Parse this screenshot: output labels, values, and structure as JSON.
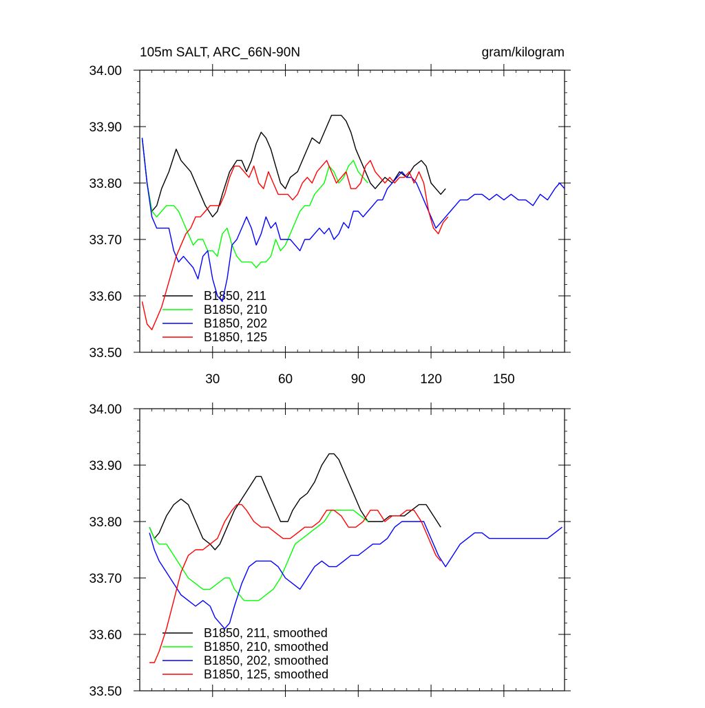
{
  "page": {
    "title_left": "105m SALT, ARC_66N-90N",
    "title_right": "gram/kilogram"
  },
  "chart_data": [
    {
      "type": "line",
      "title": "105m SALT, ARC_66N-90N",
      "units": "gram/kilogram",
      "xlim": [
        0,
        175
      ],
      "ylim": [
        33.5,
        34.0
      ],
      "x_ticks": [
        30,
        60,
        90,
        120,
        150
      ],
      "x_tick_labels": [
        "30",
        "60",
        "90",
        "120",
        "150"
      ],
      "y_ticks": [
        33.5,
        33.6,
        33.7,
        33.8,
        33.9,
        34.0
      ],
      "y_tick_labels": [
        "33.50",
        "33.60",
        "33.70",
        "33.80",
        "33.90",
        "34.00"
      ],
      "legend": "lower-left",
      "series": [
        {
          "name": "B1850, 211",
          "color": "#000000",
          "x": [
            1,
            3,
            5,
            7,
            9,
            12,
            15,
            17,
            19,
            21,
            24,
            27,
            30,
            32,
            34,
            37,
            40,
            42,
            44,
            46,
            48,
            50,
            52,
            54,
            56,
            58,
            60,
            62,
            65,
            68,
            71,
            74,
            77,
            79,
            81,
            83,
            85,
            87,
            89,
            91,
            93,
            95,
            97,
            99,
            101,
            104,
            107,
            110,
            113,
            116,
            118,
            120,
            122,
            124,
            126
          ],
          "y": [
            33.88,
            33.8,
            33.75,
            33.76,
            33.79,
            33.82,
            33.86,
            33.84,
            33.83,
            33.82,
            33.79,
            33.76,
            33.74,
            33.75,
            33.78,
            33.82,
            33.84,
            33.84,
            33.82,
            33.84,
            33.87,
            33.89,
            33.88,
            33.86,
            33.83,
            33.8,
            33.79,
            33.81,
            33.82,
            33.85,
            33.88,
            33.87,
            33.9,
            33.92,
            33.92,
            33.92,
            33.91,
            33.89,
            33.86,
            33.84,
            33.82,
            33.8,
            33.79,
            33.8,
            33.81,
            33.8,
            33.82,
            33.81,
            33.83,
            33.84,
            33.83,
            33.8,
            33.79,
            33.78,
            33.79
          ]
        },
        {
          "name": "B1850, 210",
          "color": "#00ff00",
          "x": [
            1,
            3,
            5,
            7,
            9,
            11,
            14,
            16,
            18,
            20,
            22,
            24,
            26,
            28,
            30,
            32,
            34,
            36,
            38,
            40,
            42,
            44,
            46,
            48,
            50,
            52,
            54,
            56,
            58,
            60,
            62,
            64,
            66,
            68,
            70,
            72,
            74,
            76,
            78,
            80,
            82,
            84,
            86,
            88,
            90,
            92,
            94
          ],
          "y": [
            33.88,
            33.8,
            33.75,
            33.74,
            33.75,
            33.76,
            33.76,
            33.75,
            33.73,
            33.71,
            33.69,
            33.7,
            33.7,
            33.68,
            33.68,
            33.67,
            33.71,
            33.72,
            33.69,
            33.67,
            33.66,
            33.66,
            33.66,
            33.65,
            33.66,
            33.66,
            33.67,
            33.7,
            33.68,
            33.69,
            33.71,
            33.73,
            33.75,
            33.76,
            33.76,
            33.78,
            33.79,
            33.8,
            33.83,
            33.82,
            33.8,
            33.81,
            33.83,
            33.84,
            33.82,
            33.81,
            33.8
          ]
        },
        {
          "name": "B1850, 202",
          "color": "#0000ff",
          "x": [
            1,
            3,
            5,
            7,
            9,
            12,
            14,
            16,
            18,
            20,
            22,
            24,
            26,
            28,
            30,
            32,
            34,
            36,
            38,
            40,
            42,
            44,
            46,
            48,
            50,
            52,
            54,
            56,
            58,
            60,
            62,
            64,
            66,
            68,
            70,
            72,
            74,
            76,
            78,
            80,
            82,
            84,
            86,
            88,
            90,
            92,
            94,
            96,
            98,
            100,
            102,
            104,
            106,
            108,
            110,
            112,
            114,
            116,
            118,
            120,
            122,
            124,
            126,
            128,
            130,
            132,
            135,
            138,
            141,
            144,
            147,
            150,
            153,
            156,
            159,
            162,
            165,
            168,
            171,
            173,
            175
          ],
          "y": [
            33.88,
            33.8,
            33.74,
            33.72,
            33.72,
            33.72,
            33.68,
            33.66,
            33.67,
            33.66,
            33.65,
            33.63,
            33.67,
            33.68,
            33.63,
            33.6,
            33.59,
            33.63,
            33.69,
            33.7,
            33.72,
            33.74,
            33.72,
            33.69,
            33.71,
            33.74,
            33.72,
            33.73,
            33.7,
            33.7,
            33.7,
            33.69,
            33.68,
            33.7,
            33.7,
            33.71,
            33.72,
            33.71,
            33.72,
            33.7,
            33.71,
            33.73,
            33.72,
            33.75,
            33.75,
            33.74,
            33.75,
            33.76,
            33.77,
            33.77,
            33.79,
            33.8,
            33.81,
            33.82,
            33.81,
            33.81,
            33.8,
            33.78,
            33.76,
            33.74,
            33.72,
            33.73,
            33.74,
            33.75,
            33.76,
            33.77,
            33.77,
            33.78,
            33.78,
            33.77,
            33.78,
            33.77,
            33.78,
            33.77,
            33.77,
            33.76,
            33.78,
            33.77,
            33.79,
            33.8,
            33.79
          ]
        },
        {
          "name": "B1850, 125",
          "color": "#ff0000",
          "x": [
            1,
            3,
            5,
            7,
            9,
            11,
            13,
            15,
            17,
            19,
            21,
            23,
            25,
            27,
            29,
            31,
            33,
            35,
            37,
            39,
            41,
            43,
            45,
            47,
            49,
            51,
            53,
            55,
            57,
            59,
            61,
            63,
            65,
            67,
            69,
            71,
            73,
            75,
            77,
            79,
            81,
            83,
            85,
            87,
            89,
            91,
            93,
            95,
            97,
            99,
            101,
            103,
            105,
            107,
            109,
            111,
            113,
            115,
            117,
            119,
            121,
            123,
            125,
            127
          ],
          "y": [
            33.59,
            33.55,
            33.54,
            33.56,
            33.58,
            33.61,
            33.64,
            33.67,
            33.69,
            33.71,
            33.72,
            33.74,
            33.74,
            33.75,
            33.76,
            33.76,
            33.76,
            33.78,
            33.81,
            33.83,
            33.83,
            33.82,
            33.81,
            33.83,
            33.8,
            33.79,
            33.82,
            33.8,
            33.78,
            33.78,
            33.78,
            33.77,
            33.78,
            33.8,
            33.81,
            33.8,
            33.82,
            33.83,
            33.84,
            33.82,
            33.8,
            33.81,
            33.82,
            33.79,
            33.79,
            33.8,
            33.83,
            33.84,
            33.82,
            33.81,
            33.8,
            33.81,
            33.8,
            33.81,
            33.81,
            33.82,
            33.8,
            33.82,
            33.8,
            33.75,
            33.72,
            33.71,
            33.73,
            33.74
          ]
        }
      ]
    },
    {
      "type": "line",
      "xlim": [
        0,
        175
      ],
      "ylim": [
        33.5,
        34.0
      ],
      "x_ticks": [
        30,
        60,
        90,
        120,
        150
      ],
      "y_ticks": [
        33.5,
        33.6,
        33.7,
        33.8,
        33.9,
        34.0
      ],
      "y_tick_labels": [
        "33.50",
        "33.60",
        "33.70",
        "33.80",
        "33.90",
        "34.00"
      ],
      "legend": "lower-left",
      "series": [
        {
          "name": "B1850, 211, smoothed",
          "color": "#000000",
          "x": [
            4,
            6,
            8,
            11,
            14,
            17,
            20,
            23,
            26,
            29,
            31,
            33,
            36,
            39,
            42,
            45,
            48,
            50,
            52,
            55,
            58,
            61,
            63,
            66,
            69,
            72,
            75,
            78,
            80,
            82,
            85,
            88,
            91,
            94,
            97,
            100,
            103,
            106,
            109,
            112,
            115,
            118,
            121,
            124
          ],
          "y": [
            33.79,
            33.77,
            33.78,
            33.81,
            33.83,
            33.84,
            33.83,
            33.8,
            33.77,
            33.76,
            33.75,
            33.76,
            33.79,
            33.82,
            33.84,
            33.86,
            33.88,
            33.88,
            33.86,
            33.83,
            33.8,
            33.8,
            33.82,
            33.84,
            33.85,
            33.87,
            33.9,
            33.92,
            33.92,
            33.91,
            33.88,
            33.85,
            33.82,
            33.8,
            33.8,
            33.8,
            33.81,
            33.81,
            33.81,
            33.82,
            33.83,
            33.83,
            33.81,
            33.79
          ]
        },
        {
          "name": "B1850, 210, smoothed",
          "color": "#00ff00",
          "x": [
            4,
            6,
            8,
            11,
            14,
            17,
            20,
            23,
            26,
            29,
            32,
            35,
            37,
            39,
            41,
            43,
            46,
            49,
            52,
            55,
            58,
            61,
            64,
            67,
            70,
            73,
            76,
            79,
            82,
            85,
            88,
            91,
            94
          ],
          "y": [
            33.79,
            33.77,
            33.76,
            33.76,
            33.74,
            33.72,
            33.7,
            33.69,
            33.68,
            33.68,
            33.69,
            33.7,
            33.7,
            33.68,
            33.67,
            33.66,
            33.66,
            33.66,
            33.67,
            33.68,
            33.7,
            33.73,
            33.76,
            33.77,
            33.78,
            33.79,
            33.8,
            33.82,
            33.82,
            33.82,
            33.82,
            33.81,
            33.8
          ]
        },
        {
          "name": "B1850, 202, smoothed",
          "color": "#0000ff",
          "x": [
            4,
            6,
            8,
            11,
            14,
            17,
            20,
            23,
            26,
            29,
            31,
            33,
            35,
            37,
            39,
            42,
            45,
            48,
            51,
            54,
            57,
            60,
            63,
            66,
            69,
            72,
            75,
            78,
            81,
            84,
            87,
            90,
            93,
            96,
            99,
            102,
            105,
            108,
            111,
            114,
            117,
            120,
            123,
            126,
            129,
            132,
            135,
            138,
            141,
            144,
            147,
            150,
            153,
            156,
            159,
            162,
            165,
            168,
            171,
            174
          ],
          "y": [
            33.78,
            33.75,
            33.73,
            33.71,
            33.69,
            33.67,
            33.66,
            33.65,
            33.66,
            33.65,
            33.63,
            33.62,
            33.61,
            33.62,
            33.65,
            33.69,
            33.72,
            33.73,
            33.73,
            33.73,
            33.72,
            33.7,
            33.69,
            33.68,
            33.7,
            33.72,
            33.73,
            33.72,
            33.72,
            33.73,
            33.74,
            33.74,
            33.75,
            33.76,
            33.76,
            33.77,
            33.79,
            33.8,
            33.8,
            33.8,
            33.8,
            33.77,
            33.74,
            33.72,
            33.74,
            33.76,
            33.77,
            33.78,
            33.78,
            33.77,
            33.77,
            33.77,
            33.77,
            33.77,
            33.77,
            33.77,
            33.77,
            33.77,
            33.78,
            33.79
          ]
        },
        {
          "name": "B1850, 125, smoothed",
          "color": "#ff0000",
          "x": [
            4,
            6,
            8,
            11,
            14,
            17,
            20,
            23,
            26,
            29,
            32,
            35,
            38,
            40,
            42,
            44,
            47,
            50,
            53,
            56,
            59,
            62,
            65,
            68,
            71,
            74,
            77,
            80,
            83,
            86,
            89,
            92,
            95,
            98,
            101,
            104,
            107,
            110,
            113,
            116,
            119,
            122,
            124
          ],
          "y": [
            33.55,
            33.55,
            33.57,
            33.61,
            33.66,
            33.71,
            33.74,
            33.75,
            33.75,
            33.76,
            33.77,
            33.8,
            33.82,
            33.83,
            33.83,
            33.82,
            33.8,
            33.79,
            33.79,
            33.78,
            33.77,
            33.77,
            33.78,
            33.79,
            33.79,
            33.8,
            33.82,
            33.82,
            33.81,
            33.79,
            33.79,
            33.8,
            33.82,
            33.82,
            33.8,
            33.81,
            33.81,
            33.82,
            33.82,
            33.8,
            33.77,
            33.74,
            33.73
          ]
        }
      ]
    }
  ]
}
